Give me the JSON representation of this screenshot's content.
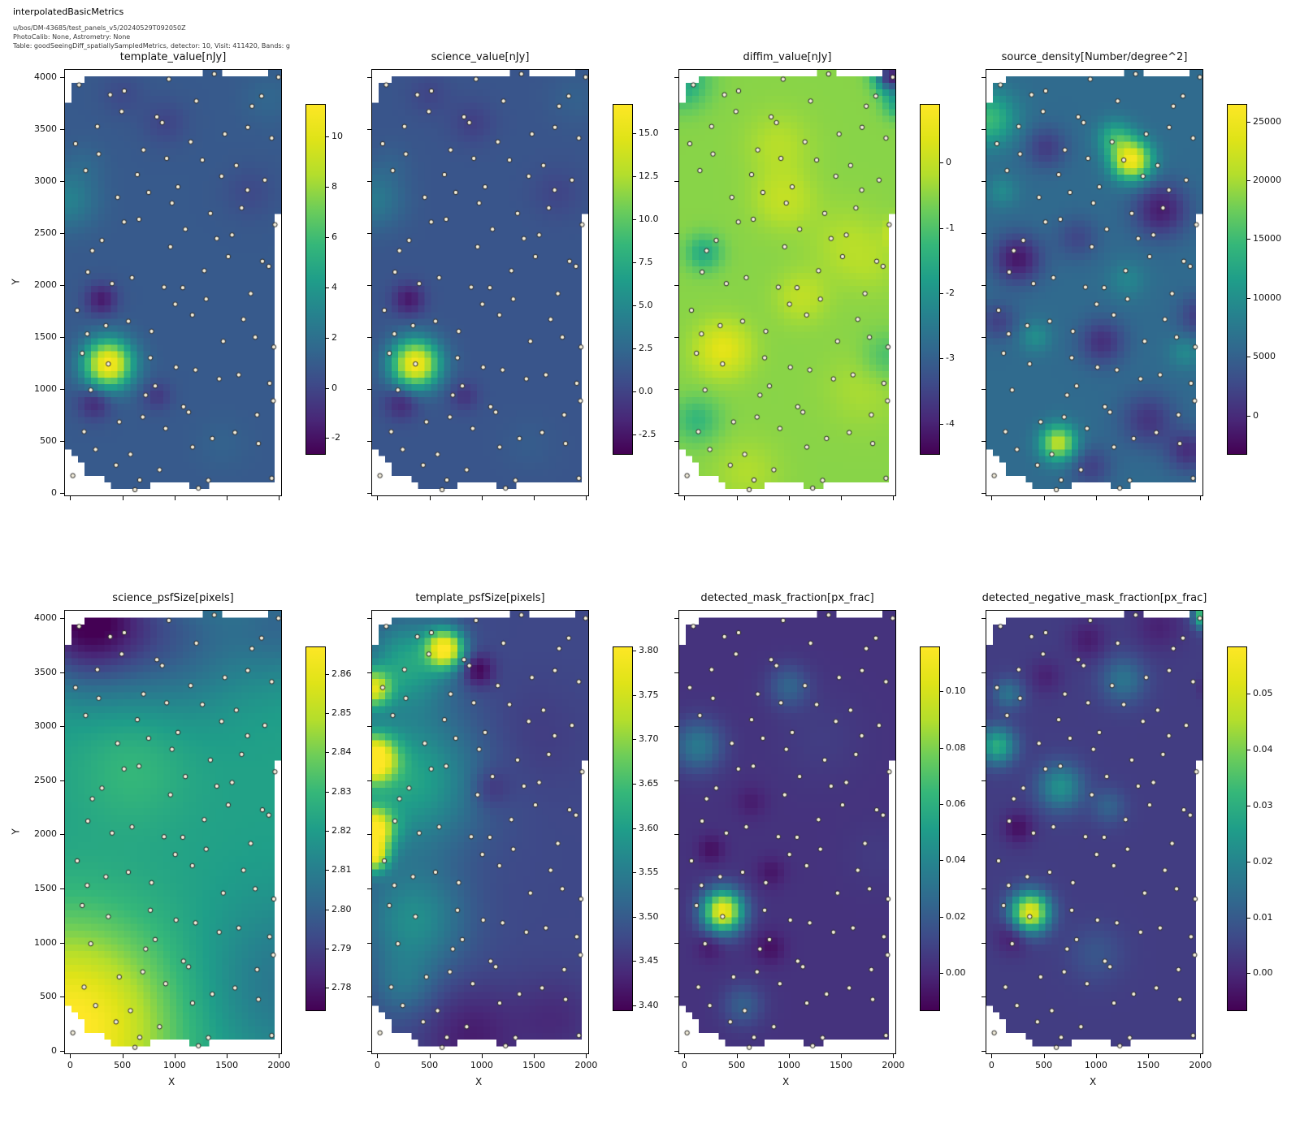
{
  "header": {
    "title": "interpolatedBasicMetrics",
    "line1": "u/bos/DM-43685/test_panels_v5/20240529T092050Z",
    "line2": "PhotoCalib: None, Astrometry: None",
    "line3": "Table: goodSeeingDiff_spatiallySampledMetrics, detector: 10, Visit: 411420, Bands: g"
  },
  "axes": {
    "xlabel": "X",
    "ylabel": "Y",
    "x_tick_labels": [
      "0",
      "500",
      "1000",
      "1500",
      "2000"
    ],
    "y_tick_labels": [
      "0",
      "500",
      "1000",
      "1500",
      "2000",
      "2500",
      "3000",
      "3500",
      "4000"
    ],
    "xlim": [
      -50,
      2020
    ],
    "ylim": [
      -25,
      4070
    ]
  },
  "colors": {
    "viridis": [
      [
        0.0,
        "#440154"
      ],
      [
        0.1,
        "#482878"
      ],
      [
        0.2,
        "#3e4a89"
      ],
      [
        0.3,
        "#31688e"
      ],
      [
        0.4,
        "#26828e"
      ],
      [
        0.5,
        "#1f9e89"
      ],
      [
        0.6,
        "#35b779"
      ],
      [
        0.7,
        "#6dcd59"
      ],
      [
        0.8,
        "#b4de2c"
      ],
      [
        0.9,
        "#dfe318"
      ],
      [
        1.0,
        "#fde725"
      ]
    ],
    "dot_fill": "#f3eedc",
    "dot_edge": "#1a1a1a"
  },
  "chart_data": {
    "type": "heatmap",
    "grid": {
      "nrows": 2,
      "ncols": 4
    },
    "footprint_polygon": [
      [
        -45,
        520
      ],
      [
        -45,
        3760
      ],
      [
        -15,
        3760
      ],
      [
        -15,
        3935
      ],
      [
        160,
        3935
      ],
      [
        160,
        3988
      ],
      [
        450,
        3988
      ],
      [
        450,
        4026
      ],
      [
        1265,
        4026
      ],
      [
        1265,
        4066
      ],
      [
        1430,
        4066
      ],
      [
        1430,
        4026
      ],
      [
        1900,
        4026
      ],
      [
        1900,
        4066
      ],
      [
        2012,
        4066
      ],
      [
        2012,
        2700
      ],
      [
        1965,
        2700
      ],
      [
        1965,
        130
      ],
      [
        1330,
        130
      ],
      [
        1330,
        60
      ],
      [
        1150,
        60
      ],
      [
        1150,
        110
      ],
      [
        770,
        110
      ],
      [
        770,
        30
      ],
      [
        515,
        30
      ],
      [
        515,
        60
      ],
      [
        420,
        60
      ],
      [
        420,
        95
      ],
      [
        330,
        95
      ],
      [
        330,
        140
      ],
      [
        240,
        140
      ],
      [
        240,
        195
      ],
      [
        165,
        195
      ],
      [
        165,
        260
      ],
      [
        95,
        260
      ],
      [
        95,
        330
      ],
      [
        30,
        330
      ],
      [
        30,
        420
      ],
      [
        -20,
        420
      ],
      [
        -20,
        520
      ]
    ],
    "sample_points": [
      [
        1380,
        4030
      ],
      [
        1995,
        4000
      ],
      [
        945,
        3980
      ],
      [
        85,
        3925
      ],
      [
        518,
        3867
      ],
      [
        383,
        3830
      ],
      [
        1208,
        3770
      ],
      [
        1833,
        3817
      ],
      [
        1741,
        3720
      ],
      [
        493,
        3669
      ],
      [
        830,
        3617
      ],
      [
        881,
        3562
      ],
      [
        260,
        3525
      ],
      [
        1481,
        3452
      ],
      [
        1701,
        3517
      ],
      [
        1930,
        3413
      ],
      [
        51,
        3359
      ],
      [
        1154,
        3377
      ],
      [
        702,
        3299
      ],
      [
        273,
        3260
      ],
      [
        924,
        3218
      ],
      [
        1266,
        3202
      ],
      [
        1591,
        3150
      ],
      [
        148,
        3101
      ],
      [
        643,
        3062
      ],
      [
        1450,
        3046
      ],
      [
        1864,
        3009
      ],
      [
        1032,
        2944
      ],
      [
        751,
        2890
      ],
      [
        454,
        2843
      ],
      [
        975,
        2788
      ],
      [
        1698,
        2913
      ],
      [
        1343,
        2689
      ],
      [
        1642,
        2741
      ],
      [
        516,
        2606
      ],
      [
        659,
        2632
      ],
      [
        1961,
        2580
      ],
      [
        1103,
        2536
      ],
      [
        1404,
        2447
      ],
      [
        1550,
        2481
      ],
      [
        304,
        2429
      ],
      [
        212,
        2330
      ],
      [
        960,
        2367
      ],
      [
        1514,
        2273
      ],
      [
        1841,
        2228
      ],
      [
        1902,
        2179
      ],
      [
        1284,
        2137
      ],
      [
        169,
        2124
      ],
      [
        592,
        2070
      ],
      [
        401,
        2013
      ],
      [
        899,
        1979
      ],
      [
        1078,
        1974
      ],
      [
        1729,
        1917
      ],
      [
        1302,
        1864
      ],
      [
        1006,
        1815
      ],
      [
        67,
        1756
      ],
      [
        1170,
        1711
      ],
      [
        1660,
        1669
      ],
      [
        557,
        1651
      ],
      [
        342,
        1609
      ],
      [
        779,
        1554
      ],
      [
        163,
        1529
      ],
      [
        1466,
        1458
      ],
      [
        1772,
        1497
      ],
      [
        1950,
        1403
      ],
      [
        115,
        1343
      ],
      [
        768,
        1299
      ],
      [
        365,
        1240
      ],
      [
        1014,
        1208
      ],
      [
        1200,
        1182
      ],
      [
        1614,
        1135
      ],
      [
        1427,
        1096
      ],
      [
        1910,
        1054
      ],
      [
        197,
        989
      ],
      [
        814,
        1028
      ],
      [
        723,
        940
      ],
      [
        1945,
        885
      ],
      [
        1085,
        828
      ],
      [
        1134,
        776
      ],
      [
        1790,
        750
      ],
      [
        695,
        729
      ],
      [
        470,
        682
      ],
      [
        133,
        588
      ],
      [
        914,
        619
      ],
      [
        1578,
        580
      ],
      [
        1361,
        523
      ],
      [
        1172,
        440
      ],
      [
        1803,
        474
      ],
      [
        243,
        417
      ],
      [
        577,
        370
      ],
      [
        439,
        266
      ],
      [
        856,
        221
      ],
      [
        666,
        123
      ],
      [
        25,
        165
      ],
      [
        1323,
        120
      ],
      [
        1930,
        140
      ],
      [
        1228,
        45
      ],
      [
        620,
        30
      ]
    ],
    "panels": [
      {
        "key": "template_value",
        "title": "template_value[nJy]",
        "vmin": -2.6,
        "vmax": 11.3,
        "base": 0.9,
        "cb_ticks": [
          "10",
          "8",
          "6",
          "4",
          "2",
          "0",
          "-2"
        ],
        "blobs": [
          [
            365,
            1240,
            230,
            10.3
          ],
          [
            300,
            1860,
            150,
            -2.6
          ],
          [
            235,
            870,
            160,
            -2.2
          ],
          [
            830,
            930,
            140,
            -1.4
          ],
          [
            -30,
            2820,
            280,
            2.0
          ],
          [
            910,
            3560,
            210,
            -0.9
          ],
          [
            1720,
            2890,
            240,
            -0.7
          ],
          [
            500,
            3830,
            200,
            -0.7
          ],
          [
            1900,
            3800,
            250,
            0.6
          ],
          [
            1450,
            470,
            260,
            0.4
          ],
          [
            140,
            3180,
            200,
            0.5
          ]
        ]
      },
      {
        "key": "science_value",
        "title": "science_value[nJy]",
        "vmin": -3.6,
        "vmax": 16.7,
        "base": 1.2,
        "cb_ticks": [
          "15.0",
          "12.5",
          "10.0",
          "7.5",
          "5.0",
          "2.5",
          "0.0",
          "-2.5"
        ],
        "blobs": [
          [
            365,
            1240,
            230,
            15.0
          ],
          [
            300,
            1860,
            150,
            -3.6
          ],
          [
            235,
            870,
            160,
            -3.0
          ],
          [
            830,
            930,
            140,
            -2.0
          ],
          [
            -30,
            2820,
            280,
            2.6
          ],
          [
            910,
            3560,
            210,
            -1.3
          ],
          [
            1720,
            2890,
            240,
            -1.0
          ],
          [
            500,
            3830,
            200,
            -1.0
          ],
          [
            1900,
            3800,
            250,
            0.8
          ],
          [
            1450,
            470,
            260,
            0.5
          ],
          [
            140,
            3180,
            200,
            0.6
          ]
        ]
      },
      {
        "key": "diffim_value",
        "title": "diffim_value[nJy]",
        "vmin": -4.45,
        "vmax": 0.9,
        "base": -0.5,
        "cb_ticks": [
          "0",
          "-1",
          "-2",
          "-3",
          "-4"
        ],
        "blobs": [
          [
            370,
            1380,
            250,
            0.95
          ],
          [
            950,
            2830,
            280,
            0.5
          ],
          [
            1120,
            1880,
            240,
            0.45
          ],
          [
            1550,
            2400,
            350,
            0.3
          ],
          [
            900,
            3350,
            300,
            0.35
          ],
          [
            1700,
            1000,
            350,
            0.25
          ],
          [
            600,
            200,
            300,
            0.3
          ],
          [
            1800,
            2200,
            300,
            0.2
          ],
          [
            2090,
            2500,
            130,
            1.3
          ],
          [
            1980,
            4010,
            150,
            -3.5
          ],
          [
            2060,
            3750,
            150,
            -1.2
          ],
          [
            -20,
            3950,
            240,
            -1.1
          ],
          [
            185,
            2310,
            170,
            -1.0
          ],
          [
            120,
            700,
            220,
            -0.75
          ],
          [
            1930,
            1310,
            220,
            -0.55
          ]
        ]
      },
      {
        "key": "source_density",
        "title": "source_density[Number/degree^2]",
        "vmin": -3200,
        "vmax": 26500,
        "base": 6000,
        "cb_ticks": [
          "25000",
          "20000",
          "15000",
          "10000",
          "5000",
          "0"
        ],
        "blobs": [
          [
            1340,
            3200,
            190,
            19500
          ],
          [
            1180,
            3420,
            170,
            7000
          ],
          [
            -30,
            3600,
            260,
            9000
          ],
          [
            640,
            480,
            170,
            15500
          ],
          [
            250,
            2250,
            230,
            -7500
          ],
          [
            1620,
            2720,
            260,
            -7000
          ],
          [
            1060,
            1450,
            220,
            -5500
          ],
          [
            520,
            3320,
            200,
            -4500
          ],
          [
            1500,
            700,
            260,
            -5000
          ],
          [
            1880,
            400,
            200,
            -5500
          ],
          [
            950,
            250,
            200,
            -4000
          ],
          [
            60,
            1650,
            180,
            -4000
          ],
          [
            1990,
            1700,
            200,
            -4500
          ],
          [
            820,
            2450,
            200,
            -3500
          ],
          [
            420,
            1500,
            150,
            4000
          ],
          [
            1850,
            1350,
            150,
            3500
          ],
          [
            1300,
            2050,
            180,
            3000
          ],
          [
            100,
            2900,
            150,
            3500
          ]
        ]
      },
      {
        "key": "science_psfSize",
        "title": "science_psfSize[pixels]",
        "vmin": 2.7745,
        "vmax": 2.867,
        "base": 2.822,
        "cb_ticks": [
          "2.86",
          "2.85",
          "2.84",
          "2.83",
          "2.82",
          "2.81",
          "2.80",
          "2.79",
          "2.78"
        ],
        "blobs": [
          [
            0,
            200,
            950,
            0.047
          ],
          [
            150,
            3980,
            600,
            -0.047
          ],
          [
            1050,
            3800,
            650,
            -0.02
          ],
          [
            2050,
            3950,
            500,
            -0.018
          ],
          [
            2050,
            600,
            800,
            -0.015
          ],
          [
            600,
            2600,
            500,
            0.008
          ]
        ]
      },
      {
        "key": "template_psfSize",
        "title": "template_psfSize[pixels]",
        "vmin": 3.395,
        "vmax": 3.805,
        "base": 3.475,
        "cb_ticks": [
          "3.80",
          "3.75",
          "3.70",
          "3.65",
          "3.60",
          "3.55",
          "3.50",
          "3.45",
          "3.40"
        ],
        "blobs": [
          [
            -40,
            2700,
            210,
            0.32
          ],
          [
            -40,
            2050,
            190,
            0.3
          ],
          [
            -45,
            3350,
            170,
            0.24
          ],
          [
            -45,
            1800,
            150,
            0.25
          ],
          [
            300,
            2500,
            650,
            0.135
          ],
          [
            350,
            1200,
            480,
            0.1
          ],
          [
            300,
            3600,
            400,
            0.13
          ],
          [
            650,
            3720,
            170,
            0.3
          ],
          [
            960,
            3520,
            150,
            -0.085
          ],
          [
            1500,
            2900,
            500,
            -0.015
          ],
          [
            900,
            140,
            450,
            -0.05
          ],
          [
            1700,
            280,
            400,
            -0.035
          ],
          [
            1080,
            2430,
            190,
            -0.04
          ],
          [
            250,
            600,
            300,
            0.05
          ]
        ]
      },
      {
        "key": "detected_mask_fraction",
        "title": "detected_mask_fraction[px_frac]",
        "vmin": -0.013,
        "vmax": 0.116,
        "base": 0.004,
        "cb_ticks": [
          "0.10",
          "0.08",
          "0.06",
          "0.04",
          "0.02",
          "0.00"
        ],
        "blobs": [
          [
            370,
            1290,
            190,
            0.107
          ],
          [
            130,
            2820,
            230,
            0.03
          ],
          [
            1000,
            3370,
            190,
            0.02
          ],
          [
            560,
            420,
            190,
            0.018
          ],
          [
            255,
            1860,
            130,
            -0.012
          ],
          [
            820,
            950,
            150,
            -0.012
          ],
          [
            245,
            960,
            130,
            -0.01
          ],
          [
            830,
            1650,
            140,
            -0.01
          ],
          [
            640,
            2300,
            150,
            -0.008
          ],
          [
            1300,
            2900,
            400,
            0.004
          ],
          [
            1850,
            1800,
            300,
            0.003
          ]
        ]
      },
      {
        "key": "detected_negative_mask_fraction",
        "title": "detected_negative_mask_fraction[px_frac]",
        "vmin": -0.0065,
        "vmax": 0.0585,
        "base": 0.004,
        "cb_ticks": [
          "0.05",
          "0.04",
          "0.03",
          "0.02",
          "0.01",
          "0.00"
        ],
        "blobs": [
          [
            370,
            1280,
            180,
            0.05
          ],
          [
            55,
            2820,
            170,
            0.026
          ],
          [
            660,
            2440,
            210,
            0.019
          ],
          [
            1260,
            3430,
            210,
            0.012
          ],
          [
            1120,
            2260,
            160,
            0.008
          ],
          [
            2080,
            4030,
            120,
            0.05
          ],
          [
            2100,
            3350,
            90,
            -0.009
          ],
          [
            255,
            2060,
            150,
            -0.008
          ],
          [
            205,
            1060,
            160,
            -0.007
          ],
          [
            920,
            3800,
            180,
            -0.006
          ],
          [
            1600,
            3920,
            220,
            -0.005
          ],
          [
            520,
            3460,
            160,
            -0.005
          ],
          [
            1000,
            900,
            250,
            0.005
          ],
          [
            160,
            3300,
            140,
            0.012
          ]
        ]
      }
    ]
  }
}
